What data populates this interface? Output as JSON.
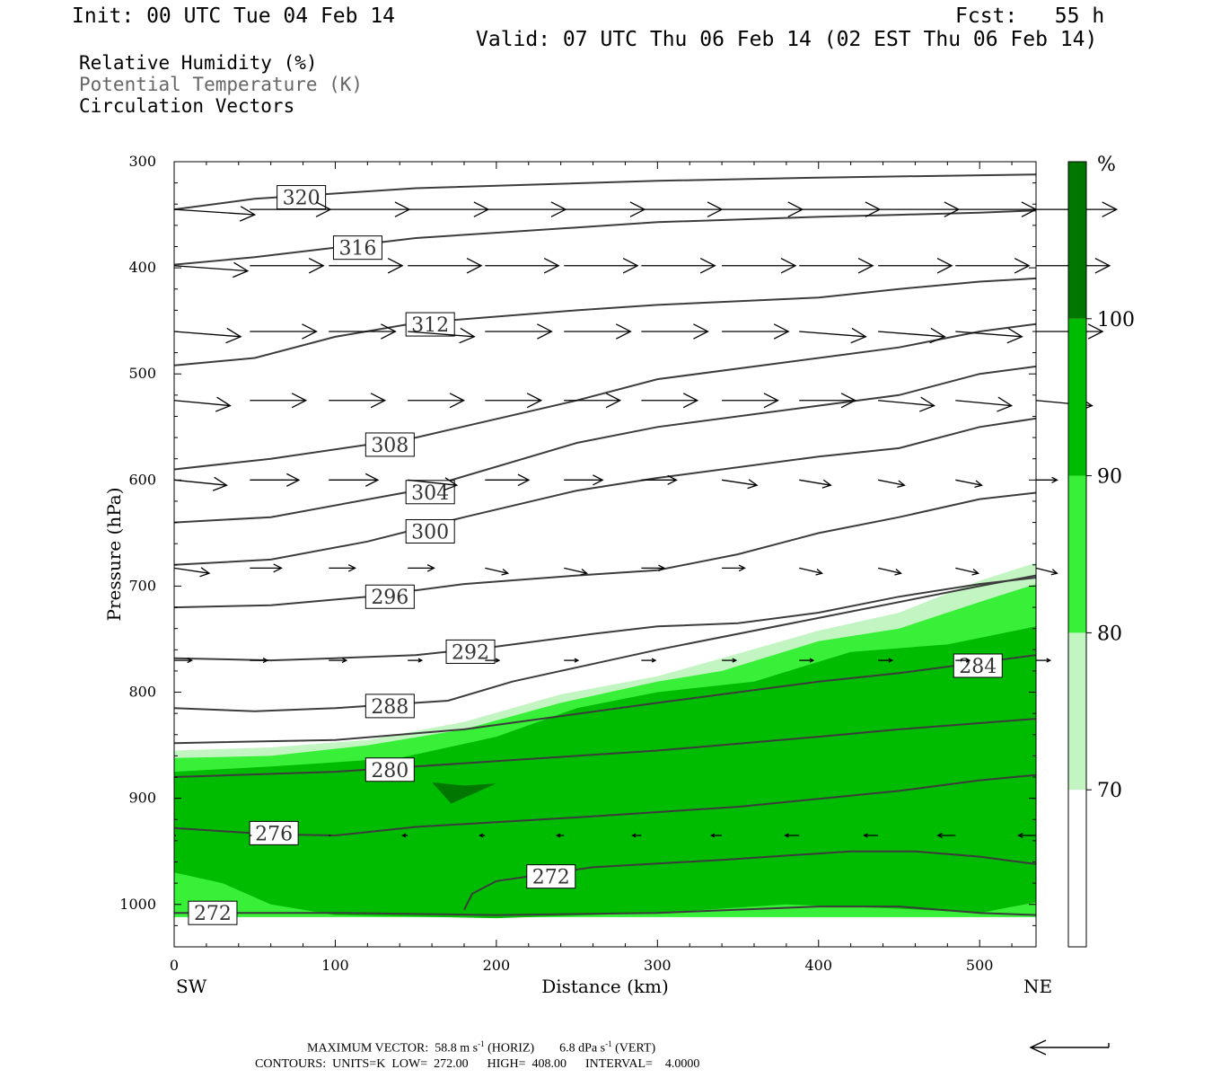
{
  "header": {
    "init": "Init: 00 UTC Tue 04 Feb 14",
    "fcst": "Fcst:   55 h",
    "valid": "Valid: 07 UTC Thu 06 Feb 14 (02 EST Thu 06 Feb 14)",
    "legend": [
      "Relative Humidity (%)",
      "Potential Temperature (K)",
      "Circulation Vectors"
    ]
  },
  "footer": {
    "max_vector_prefix": "MAXIMUM VECTOR:  58.8 m s",
    "max_vector_sup1": "-1",
    "max_vector_mid": " (HORIZ)        6.8 dPa s",
    "max_vector_sup2": "-1",
    "max_vector_suffix": " (VERT)",
    "contours": "CONTOURS:  UNITS=K  LOW=  272.00      HIGH=  408.00      INTERVAL=    4.0000"
  },
  "colors": {
    "rh_70_80": "#c2f5c2",
    "rh_80_90": "#38f038",
    "rh_90_100": "#00bc00",
    "rh_100": "#007800",
    "theta": "#3c3c3c",
    "vector": "#000000"
  },
  "chart_data": {
    "type": "cross-section",
    "xlabel": "Distance (km)",
    "ylabel": "Pressure (hPa)",
    "xlim": [
      0,
      535
    ],
    "ylim": [
      1040,
      300
    ],
    "x_ticks": [
      0,
      100,
      200,
      300,
      400,
      500
    ],
    "y_ticks": [
      300,
      400,
      500,
      600,
      700,
      800,
      900,
      1000
    ],
    "x_end_labels": {
      "left": "SW",
      "right": "NE"
    },
    "colorbar": {
      "unit": "%",
      "levels": [
        70,
        80,
        90,
        100
      ],
      "colors": [
        "#ffffff",
        "#c2f5c2",
        "#38f038",
        "#00bc00",
        "#007800"
      ]
    },
    "rh_fill": [
      {
        "level": 70,
        "top": [
          [
            0,
            855
          ],
          [
            60,
            852
          ],
          [
            120,
            845
          ],
          [
            180,
            828
          ],
          [
            240,
            802
          ],
          [
            300,
            785
          ],
          [
            340,
            768
          ],
          [
            400,
            742
          ],
          [
            450,
            725
          ],
          [
            500,
            695
          ],
          [
            535,
            678
          ]
        ],
        "bottom": [
          [
            0,
            1012
          ],
          [
            535,
            1012
          ]
        ]
      },
      {
        "level": 80,
        "top": [
          [
            0,
            862
          ],
          [
            60,
            860
          ],
          [
            120,
            850
          ],
          [
            180,
            835
          ],
          [
            240,
            810
          ],
          [
            300,
            790
          ],
          [
            340,
            780
          ],
          [
            400,
            752
          ],
          [
            450,
            740
          ],
          [
            500,
            715
          ],
          [
            535,
            698
          ]
        ],
        "bottom": [
          [
            0,
            1012
          ],
          [
            535,
            1012
          ]
        ]
      },
      {
        "level": 90,
        "top": [
          [
            0,
            875
          ],
          [
            60,
            870
          ],
          [
            140,
            862
          ],
          [
            200,
            842
          ],
          [
            250,
            815
          ],
          [
            300,
            800
          ],
          [
            360,
            790
          ],
          [
            420,
            762
          ],
          [
            480,
            755
          ],
          [
            535,
            738
          ]
        ],
        "bottom": [
          [
            0,
            970
          ],
          [
            30,
            980
          ],
          [
            60,
            1000
          ],
          [
            100,
            1010
          ],
          [
            200,
            1013
          ],
          [
            300,
            1008
          ],
          [
            380,
            1000
          ],
          [
            450,
            1004
          ],
          [
            500,
            1008
          ],
          [
            535,
            998
          ]
        ]
      },
      {
        "level": 100,
        "polygon": [
          [
            160,
            885
          ],
          [
            180,
            888
          ],
          [
            200,
            886
          ],
          [
            172,
            905
          ]
        ]
      }
    ],
    "theta_contours": [
      {
        "value": 272,
        "points": [
          [
            0,
            1008
          ],
          [
            100,
            1008
          ],
          [
            200,
            1010
          ],
          [
            300,
            1008
          ],
          [
            400,
            1002
          ],
          [
            450,
            1002
          ],
          [
            500,
            1008
          ],
          [
            535,
            1010
          ]
        ],
        "label_x": 10
      },
      {
        "value": 272,
        "points": [
          [
            180,
            1005
          ],
          [
            185,
            990
          ],
          [
            200,
            978
          ],
          [
            260,
            965
          ],
          [
            340,
            958
          ],
          [
            420,
            950
          ],
          [
            460,
            950
          ],
          [
            500,
            955
          ],
          [
            535,
            962
          ]
        ],
        "label_x": 220
      },
      {
        "value": 276,
        "points": [
          [
            0,
            928
          ],
          [
            60,
            934
          ],
          [
            100,
            935
          ],
          [
            150,
            927
          ],
          [
            250,
            918
          ],
          [
            350,
            908
          ],
          [
            450,
            893
          ],
          [
            500,
            883
          ],
          [
            535,
            878
          ]
        ],
        "label_x": 48
      },
      {
        "value": 280,
        "points": [
          [
            0,
            880
          ],
          [
            100,
            875
          ],
          [
            200,
            865
          ],
          [
            300,
            855
          ],
          [
            400,
            842
          ],
          [
            450,
            835
          ],
          [
            535,
            825
          ]
        ],
        "label_x": 120
      },
      {
        "value": 284,
        "points": [
          [
            0,
            848
          ],
          [
            100,
            845
          ],
          [
            180,
            835
          ],
          [
            300,
            810
          ],
          [
            400,
            790
          ],
          [
            450,
            782
          ],
          [
            535,
            765
          ]
        ],
        "label_x": 485
      },
      {
        "value": 288,
        "points": [
          [
            0,
            815
          ],
          [
            50,
            818
          ],
          [
            100,
            815
          ],
          [
            170,
            808
          ],
          [
            210,
            790
          ],
          [
            300,
            760
          ],
          [
            400,
            730
          ],
          [
            500,
            700
          ],
          [
            535,
            690
          ]
        ],
        "label_x": 120
      },
      {
        "value": 292,
        "points": [
          [
            0,
            768
          ],
          [
            60,
            770
          ],
          [
            100,
            768
          ],
          [
            150,
            765
          ],
          [
            200,
            757
          ],
          [
            260,
            745
          ],
          [
            300,
            738
          ],
          [
            350,
            735
          ],
          [
            400,
            725
          ],
          [
            450,
            710
          ],
          [
            500,
            698
          ],
          [
            535,
            692
          ]
        ],
        "label_x": 170
      },
      {
        "value": 296,
        "points": [
          [
            0,
            720
          ],
          [
            60,
            718
          ],
          [
            120,
            710
          ],
          [
            180,
            698
          ],
          [
            250,
            690
          ],
          [
            300,
            685
          ],
          [
            350,
            670
          ],
          [
            400,
            650
          ],
          [
            450,
            635
          ],
          [
            500,
            618
          ],
          [
            535,
            612
          ]
        ],
        "label_x": 120
      },
      {
        "value": 300,
        "points": [
          [
            0,
            680
          ],
          [
            60,
            675
          ],
          [
            120,
            658
          ],
          [
            180,
            635
          ],
          [
            250,
            610
          ],
          [
            300,
            598
          ],
          [
            400,
            578
          ],
          [
            450,
            570
          ],
          [
            500,
            550
          ],
          [
            535,
            542
          ]
        ],
        "label_x": 145
      },
      {
        "value": 304,
        "points": [
          [
            0,
            640
          ],
          [
            60,
            635
          ],
          [
            150,
            610
          ],
          [
            250,
            565
          ],
          [
            300,
            550
          ],
          [
            400,
            530
          ],
          [
            450,
            520
          ],
          [
            500,
            500
          ],
          [
            535,
            493
          ]
        ],
        "label_x": 145
      },
      {
        "value": 308,
        "points": [
          [
            0,
            590
          ],
          [
            60,
            580
          ],
          [
            150,
            560
          ],
          [
            250,
            525
          ],
          [
            300,
            505
          ],
          [
            400,
            485
          ],
          [
            450,
            475
          ],
          [
            500,
            460
          ],
          [
            535,
            453
          ]
        ],
        "label_x": 120
      },
      {
        "value": 312,
        "points": [
          [
            0,
            492
          ],
          [
            50,
            485
          ],
          [
            100,
            465
          ],
          [
            150,
            452
          ],
          [
            250,
            440
          ],
          [
            300,
            435
          ],
          [
            400,
            428
          ],
          [
            450,
            420
          ],
          [
            500,
            413
          ],
          [
            535,
            410
          ]
        ],
        "label_x": 145
      },
      {
        "value": 316,
        "points": [
          [
            0,
            397
          ],
          [
            50,
            390
          ],
          [
            150,
            372
          ],
          [
            250,
            362
          ],
          [
            300,
            357
          ],
          [
            400,
            352
          ],
          [
            450,
            350
          ],
          [
            500,
            348
          ],
          [
            535,
            346
          ]
        ],
        "label_x": 100
      },
      {
        "value": 320,
        "points": [
          [
            0,
            345
          ],
          [
            50,
            335
          ],
          [
            150,
            325
          ],
          [
            300,
            318
          ],
          [
            400,
            315
          ],
          [
            535,
            312
          ]
        ],
        "label_x": 65
      }
    ],
    "vectors": {
      "x_positions": [
        0,
        47,
        96,
        145,
        193,
        242,
        290,
        340,
        388,
        437,
        485,
        535
      ],
      "levels": [
        {
          "p": 345,
          "u": [
            46,
            46,
            46,
            46,
            46,
            46,
            46,
            46,
            46,
            46,
            46,
            46
          ],
          "w": [
            -1,
            0,
            0,
            0,
            0,
            0,
            0,
            0,
            0,
            0,
            0,
            0
          ]
        },
        {
          "p": 398,
          "u": [
            42,
            42,
            42,
            42,
            42,
            42,
            42,
            42,
            42,
            42,
            42,
            42
          ],
          "w": [
            -1,
            0,
            0,
            0,
            0,
            0,
            0,
            0,
            0,
            0,
            0,
            0
          ]
        },
        {
          "p": 460,
          "u": [
            38,
            38,
            38,
            38,
            38,
            38,
            38,
            38,
            38,
            38,
            38,
            38
          ],
          "w": [
            -1,
            0,
            0,
            -1,
            0,
            0,
            0,
            0,
            -1,
            -1,
            -1,
            0
          ]
        },
        {
          "p": 525,
          "u": [
            32,
            32,
            32,
            32,
            32,
            32,
            32,
            32,
            32,
            32,
            32,
            32
          ],
          "w": [
            -1,
            0,
            0,
            0,
            0,
            0,
            0,
            0,
            0,
            -1,
            -1,
            -1
          ]
        },
        {
          "p": 600,
          "u": [
            30,
            28,
            28,
            28,
            25,
            22,
            20,
            20,
            18,
            15,
            15,
            12
          ],
          "w": [
            -1,
            0,
            0,
            -1,
            0,
            0,
            0,
            -1,
            -1,
            -1,
            -1,
            0
          ]
        },
        {
          "p": 683,
          "u": [
            20,
            18,
            15,
            15,
            13,
            13,
            13,
            13,
            13,
            13,
            13,
            12
          ],
          "w": [
            -1,
            0,
            0,
            0,
            -1,
            -1,
            0,
            0,
            -1,
            -1,
            -1,
            -1
          ]
        },
        {
          "p": 770,
          "u": [
            10,
            10,
            10,
            8,
            8,
            8,
            8,
            8,
            8,
            8,
            8,
            8
          ],
          "w": [
            0,
            0,
            0,
            0,
            0,
            0,
            0,
            0,
            0,
            0,
            0,
            0
          ]
        },
        {
          "p": 935,
          "u": [
            0,
            0,
            0,
            -3,
            -3,
            -4,
            -5,
            -6,
            -8,
            -8,
            -10,
            -10
          ],
          "w": [
            0,
            0,
            0,
            0,
            0,
            0,
            0,
            0,
            0,
            0,
            0,
            0
          ]
        }
      ]
    }
  }
}
